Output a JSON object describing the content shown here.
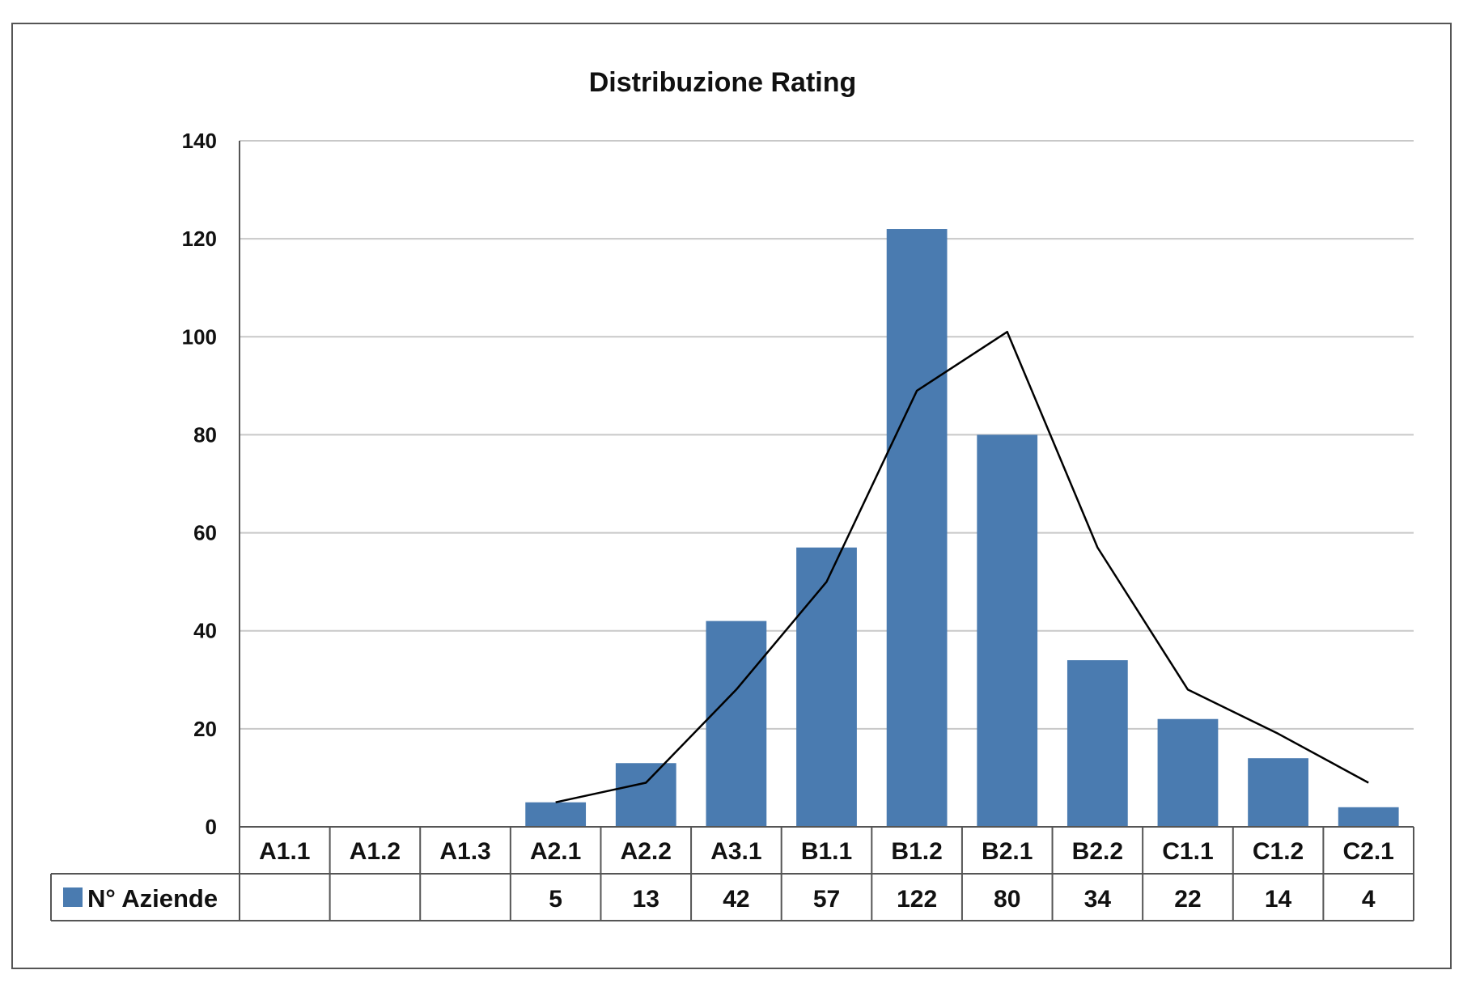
{
  "chart_data": {
    "type": "bar",
    "title": "Distribuzione Rating",
    "categories": [
      "A1.1",
      "A1.2",
      "A1.3",
      "A2.1",
      "A2.2",
      "A3.1",
      "B1.1",
      "B1.2",
      "B2.1",
      "B2.2",
      "C1.1",
      "C1.2",
      "C2.1"
    ],
    "series": [
      {
        "name": "N° Aziende",
        "values": [
          null,
          null,
          null,
          5,
          13,
          42,
          57,
          122,
          80,
          34,
          22,
          14,
          4
        ],
        "color": "#4a7bb0"
      }
    ],
    "trend_line": {
      "type": "line",
      "color": "#000000",
      "values": [
        null,
        null,
        null,
        5,
        9,
        28,
        50,
        89,
        101,
        57,
        28,
        19,
        9
      ]
    },
    "ylim": [
      0,
      140
    ],
    "yticks": [
      0,
      20,
      40,
      60,
      80,
      100,
      120,
      140
    ],
    "grid": true,
    "data_table": true,
    "legend_position": "data-table-left"
  }
}
